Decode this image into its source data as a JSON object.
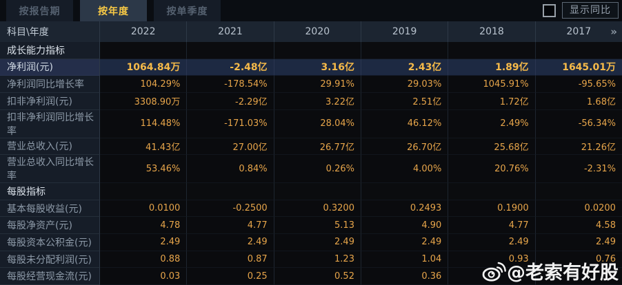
{
  "tabs": [
    {
      "name": "by-report-period",
      "label": "按报告期",
      "active": false
    },
    {
      "name": "by-year",
      "label": "按年度",
      "active": true
    },
    {
      "name": "by-quarter",
      "label": "按单季度",
      "active": false
    }
  ],
  "show_yoy": {
    "label": "显示同比",
    "checked": false
  },
  "table": {
    "corner_label": "科目\\年度",
    "years": [
      "2022",
      "2021",
      "2020",
      "2019",
      "2018",
      "2017"
    ],
    "more_icon": "»",
    "rows": [
      {
        "type": "section",
        "label": "成长能力指标",
        "values": [
          "",
          "",
          "",
          "",
          "",
          ""
        ]
      },
      {
        "type": "highlight",
        "label": "净利润(元)",
        "values": [
          "1064.84万",
          "-2.48亿",
          "3.16亿",
          "2.43亿",
          "1.89亿",
          "1645.01万"
        ]
      },
      {
        "type": "data",
        "label": "净利润同比增长率",
        "values": [
          "104.29%",
          "-178.54%",
          "29.91%",
          "29.03%",
          "1045.91%",
          "-95.65%"
        ]
      },
      {
        "type": "data",
        "label": "扣非净利润(元)",
        "values": [
          "3308.90万",
          "-2.29亿",
          "3.22亿",
          "2.51亿",
          "1.72亿",
          "1.68亿"
        ]
      },
      {
        "type": "data",
        "label": "扣非净利润同比增长率",
        "values": [
          "114.48%",
          "-171.03%",
          "28.04%",
          "46.12%",
          "2.49%",
          "-56.34%"
        ]
      },
      {
        "type": "data",
        "label": "营业总收入(元)",
        "values": [
          "41.43亿",
          "27.00亿",
          "26.77亿",
          "26.70亿",
          "25.68亿",
          "21.26亿"
        ]
      },
      {
        "type": "data",
        "label": "营业总收入同比增长率",
        "values": [
          "53.46%",
          "0.84%",
          "0.26%",
          "4.00%",
          "20.76%",
          "-2.31%"
        ]
      },
      {
        "type": "section",
        "label": "每股指标",
        "values": [
          "",
          "",
          "",
          "",
          "",
          ""
        ]
      },
      {
        "type": "data",
        "label": "基本每股收益(元)",
        "values": [
          "0.0100",
          "-0.2500",
          "0.3200",
          "0.2493",
          "0.1900",
          "0.0200"
        ]
      },
      {
        "type": "data",
        "label": "每股净资产(元)",
        "values": [
          "4.78",
          "4.77",
          "5.13",
          "4.90",
          "4.77",
          "4.58"
        ]
      },
      {
        "type": "data",
        "label": "每股资本公积金(元)",
        "values": [
          "2.49",
          "2.49",
          "2.49",
          "2.49",
          "2.49",
          "2.49"
        ]
      },
      {
        "type": "data",
        "label": "每股未分配利润(元)",
        "values": [
          "0.88",
          "0.87",
          "1.23",
          "1.04",
          "0.93",
          "0.76"
        ]
      },
      {
        "type": "data",
        "label": "每股经营现金流(元)",
        "values": [
          "0.03",
          "0.25",
          "0.52",
          "0.36",
          "",
          ""
        ]
      }
    ]
  },
  "watermark": {
    "handle": "@老索有好股",
    "icon": "weibo-icon"
  },
  "colors": {
    "accent_gold": "#f6ba49",
    "value_orange": "#e7a54a",
    "highlight_row_bg": "#1d2942",
    "header_bg": "#1c2531",
    "label_col_bg": "#161d28",
    "active_tab_text": "#f9ca45"
  }
}
